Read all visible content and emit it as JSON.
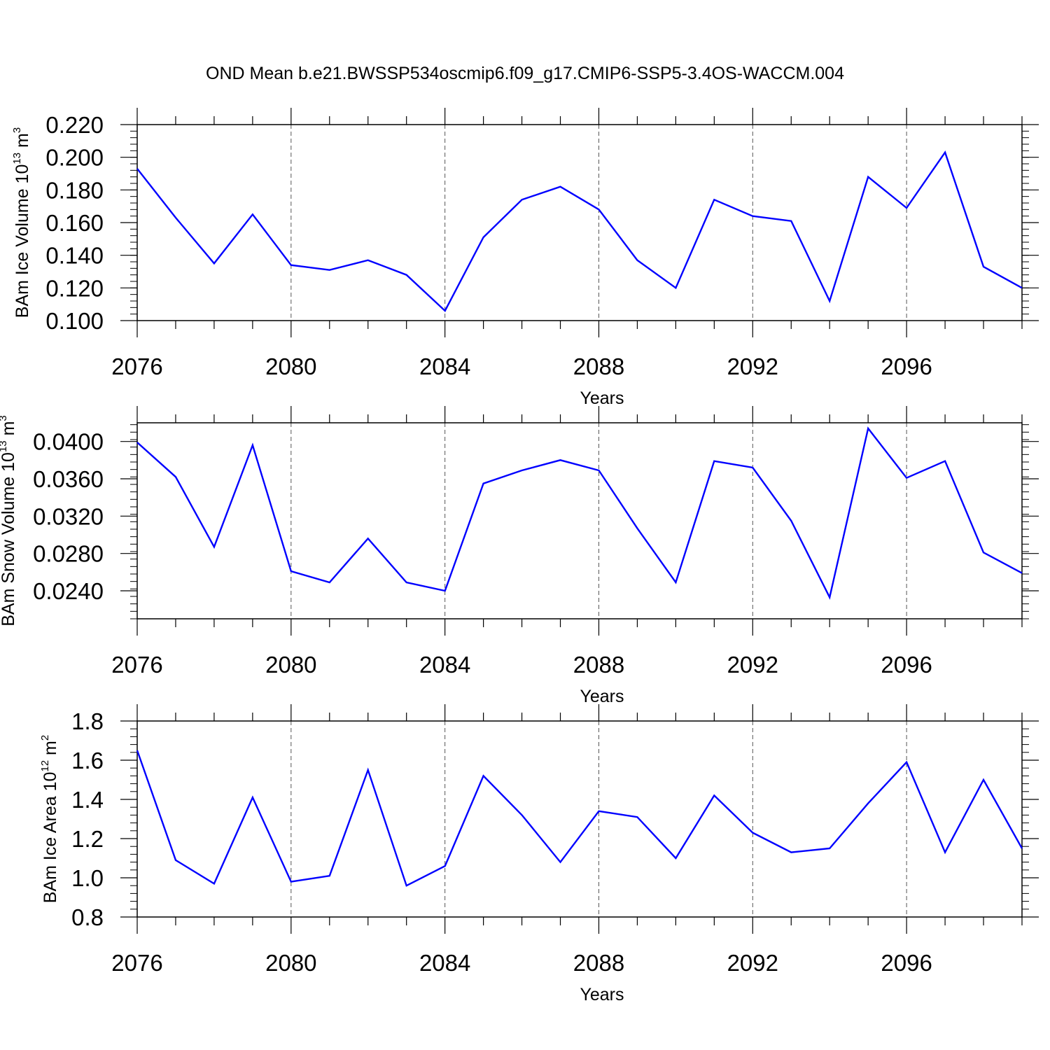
{
  "title": "OND Mean b.e21.BWSSP534oscmip6.f09_g17.CMIP6-SSP5-3.4OS-WACCM.004",
  "colors": {
    "line": "#0000ff",
    "axis": "#000000",
    "grid": "#555555"
  },
  "chart_data": [
    {
      "type": "line",
      "ylabel_main": "BAm Ice Volume 10",
      "ylabel_exp": "13",
      "ylabel_unit": " m",
      "ylabel_unit_exp": "3",
      "xlabel": "Years",
      "xlim": [
        2076,
        2099
      ],
      "ylim": [
        0.1,
        0.22
      ],
      "yticks": [
        0.1,
        0.12,
        0.14,
        0.16,
        0.18,
        0.2,
        0.22
      ],
      "yticklabels": [
        "0.100",
        "0.120",
        "0.140",
        "0.160",
        "0.180",
        "0.200",
        "0.220"
      ],
      "yminor": 0.004,
      "xticks": [
        2076,
        2080,
        2084,
        2088,
        2092,
        2096
      ],
      "xticklabels": [
        "2076",
        "2080",
        "2084",
        "2088",
        "2092",
        "2096"
      ],
      "x": [
        2076,
        2077,
        2078,
        2079,
        2080,
        2081,
        2082,
        2083,
        2084,
        2085,
        2086,
        2087,
        2088,
        2089,
        2090,
        2091,
        2092,
        2093,
        2094,
        2095,
        2096,
        2097,
        2098,
        2099
      ],
      "series": [
        {
          "values": [
            0.193,
            0.163,
            0.135,
            0.165,
            0.134,
            0.131,
            0.137,
            0.128,
            0.106,
            0.151,
            0.174,
            0.182,
            0.168,
            0.137,
            0.12,
            0.174,
            0.164,
            0.161,
            0.112,
            0.188,
            0.169,
            0.203,
            0.133,
            0.12
          ]
        }
      ]
    },
    {
      "type": "line",
      "ylabel_main": "BAm Snow Volume 10",
      "ylabel_exp": "13",
      "ylabel_unit": " m",
      "ylabel_unit_exp": "3",
      "xlabel": "Years",
      "xlim": [
        2076,
        2099
      ],
      "ylim": [
        0.021,
        0.042
      ],
      "yticks": [
        0.024,
        0.028,
        0.032,
        0.036,
        0.04
      ],
      "yticklabels": [
        "0.0240",
        "0.0280",
        "0.0320",
        "0.0360",
        "0.0400"
      ],
      "yminor": 0.0008,
      "xticks": [
        2076,
        2080,
        2084,
        2088,
        2092,
        2096
      ],
      "xticklabels": [
        "2076",
        "2080",
        "2084",
        "2088",
        "2092",
        "2096"
      ],
      "x": [
        2076,
        2077,
        2078,
        2079,
        2080,
        2081,
        2082,
        2083,
        2084,
        2085,
        2086,
        2087,
        2088,
        2089,
        2090,
        2091,
        2092,
        2093,
        2094,
        2095,
        2096,
        2097,
        2098,
        2099
      ],
      "series": [
        {
          "values": [
            0.0399,
            0.0362,
            0.0287,
            0.0396,
            0.0261,
            0.0249,
            0.0296,
            0.0249,
            0.024,
            0.0355,
            0.0369,
            0.038,
            0.0369,
            0.0307,
            0.0249,
            0.0379,
            0.0372,
            0.0315,
            0.0233,
            0.0414,
            0.0361,
            0.0379,
            0.0281,
            0.0259
          ]
        }
      ]
    },
    {
      "type": "line",
      "ylabel_main": "BAm Ice Area 10",
      "ylabel_exp": "12",
      "ylabel_unit": " m",
      "ylabel_unit_exp": "2",
      "xlabel": "Years",
      "xlim": [
        2076,
        2099
      ],
      "ylim": [
        0.8,
        1.8
      ],
      "yticks": [
        0.8,
        1.0,
        1.2,
        1.4,
        1.6,
        1.8
      ],
      "yticklabels": [
        "0.8",
        "1.0",
        "1.2",
        "1.4",
        "1.6",
        "1.8"
      ],
      "yminor": 0.04,
      "xticks": [
        2076,
        2080,
        2084,
        2088,
        2092,
        2096
      ],
      "xticklabels": [
        "2076",
        "2080",
        "2084",
        "2088",
        "2092",
        "2096"
      ],
      "x": [
        2076,
        2077,
        2078,
        2079,
        2080,
        2081,
        2082,
        2083,
        2084,
        2085,
        2086,
        2087,
        2088,
        2089,
        2090,
        2091,
        2092,
        2093,
        2094,
        2095,
        2096,
        2097,
        2098,
        2099
      ],
      "series": [
        {
          "values": [
            1.65,
            1.09,
            0.97,
            1.41,
            0.98,
            1.01,
            1.55,
            0.96,
            1.06,
            1.52,
            1.32,
            1.08,
            1.34,
            1.31,
            1.1,
            1.42,
            1.23,
            1.13,
            1.15,
            1.38,
            1.59,
            1.13,
            1.5,
            1.15
          ]
        }
      ]
    }
  ]
}
